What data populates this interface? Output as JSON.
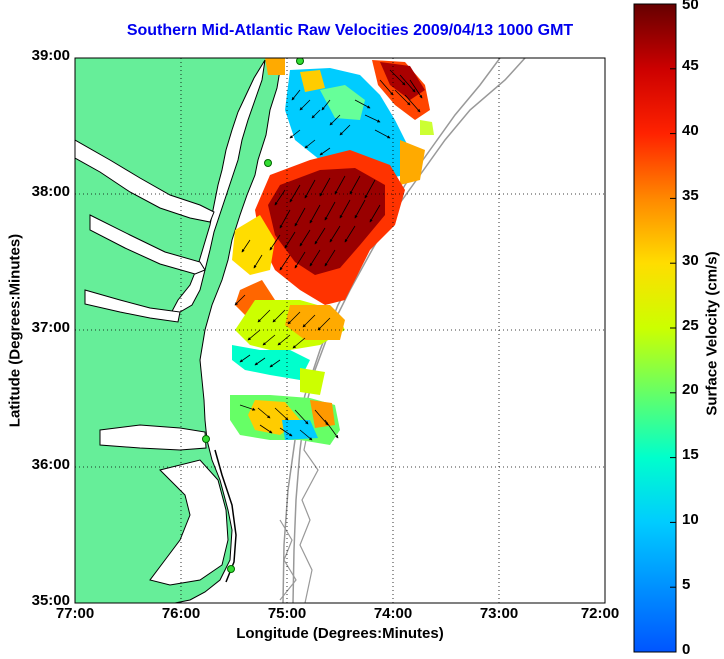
{
  "title": "Southern Mid-Atlantic Raw Velocities 2009/04/13 1000 GMT",
  "xlabel": "Longitude (Degrees:Minutes)",
  "ylabel": "Latitude (Degrees:Minutes)",
  "colorbar": {
    "label": "Surface Velocity (cm/s)",
    "ticks": [
      "0",
      "5",
      "10",
      "15",
      "20",
      "25",
      "30",
      "35",
      "40",
      "45",
      "50"
    ],
    "range": [
      0,
      50
    ]
  },
  "map": {
    "lon_ticks": [
      "77:00",
      "76:00",
      "75:00",
      "74:00",
      "73:00",
      "72:00"
    ],
    "lat_ticks": [
      "39:00",
      "38:00",
      "37:00",
      "36:00",
      "35:00"
    ],
    "land_color": "#66ee99",
    "water_color": "#ffffff",
    "bathymetry_color": "#999999",
    "station_color": "#33dd33"
  }
}
